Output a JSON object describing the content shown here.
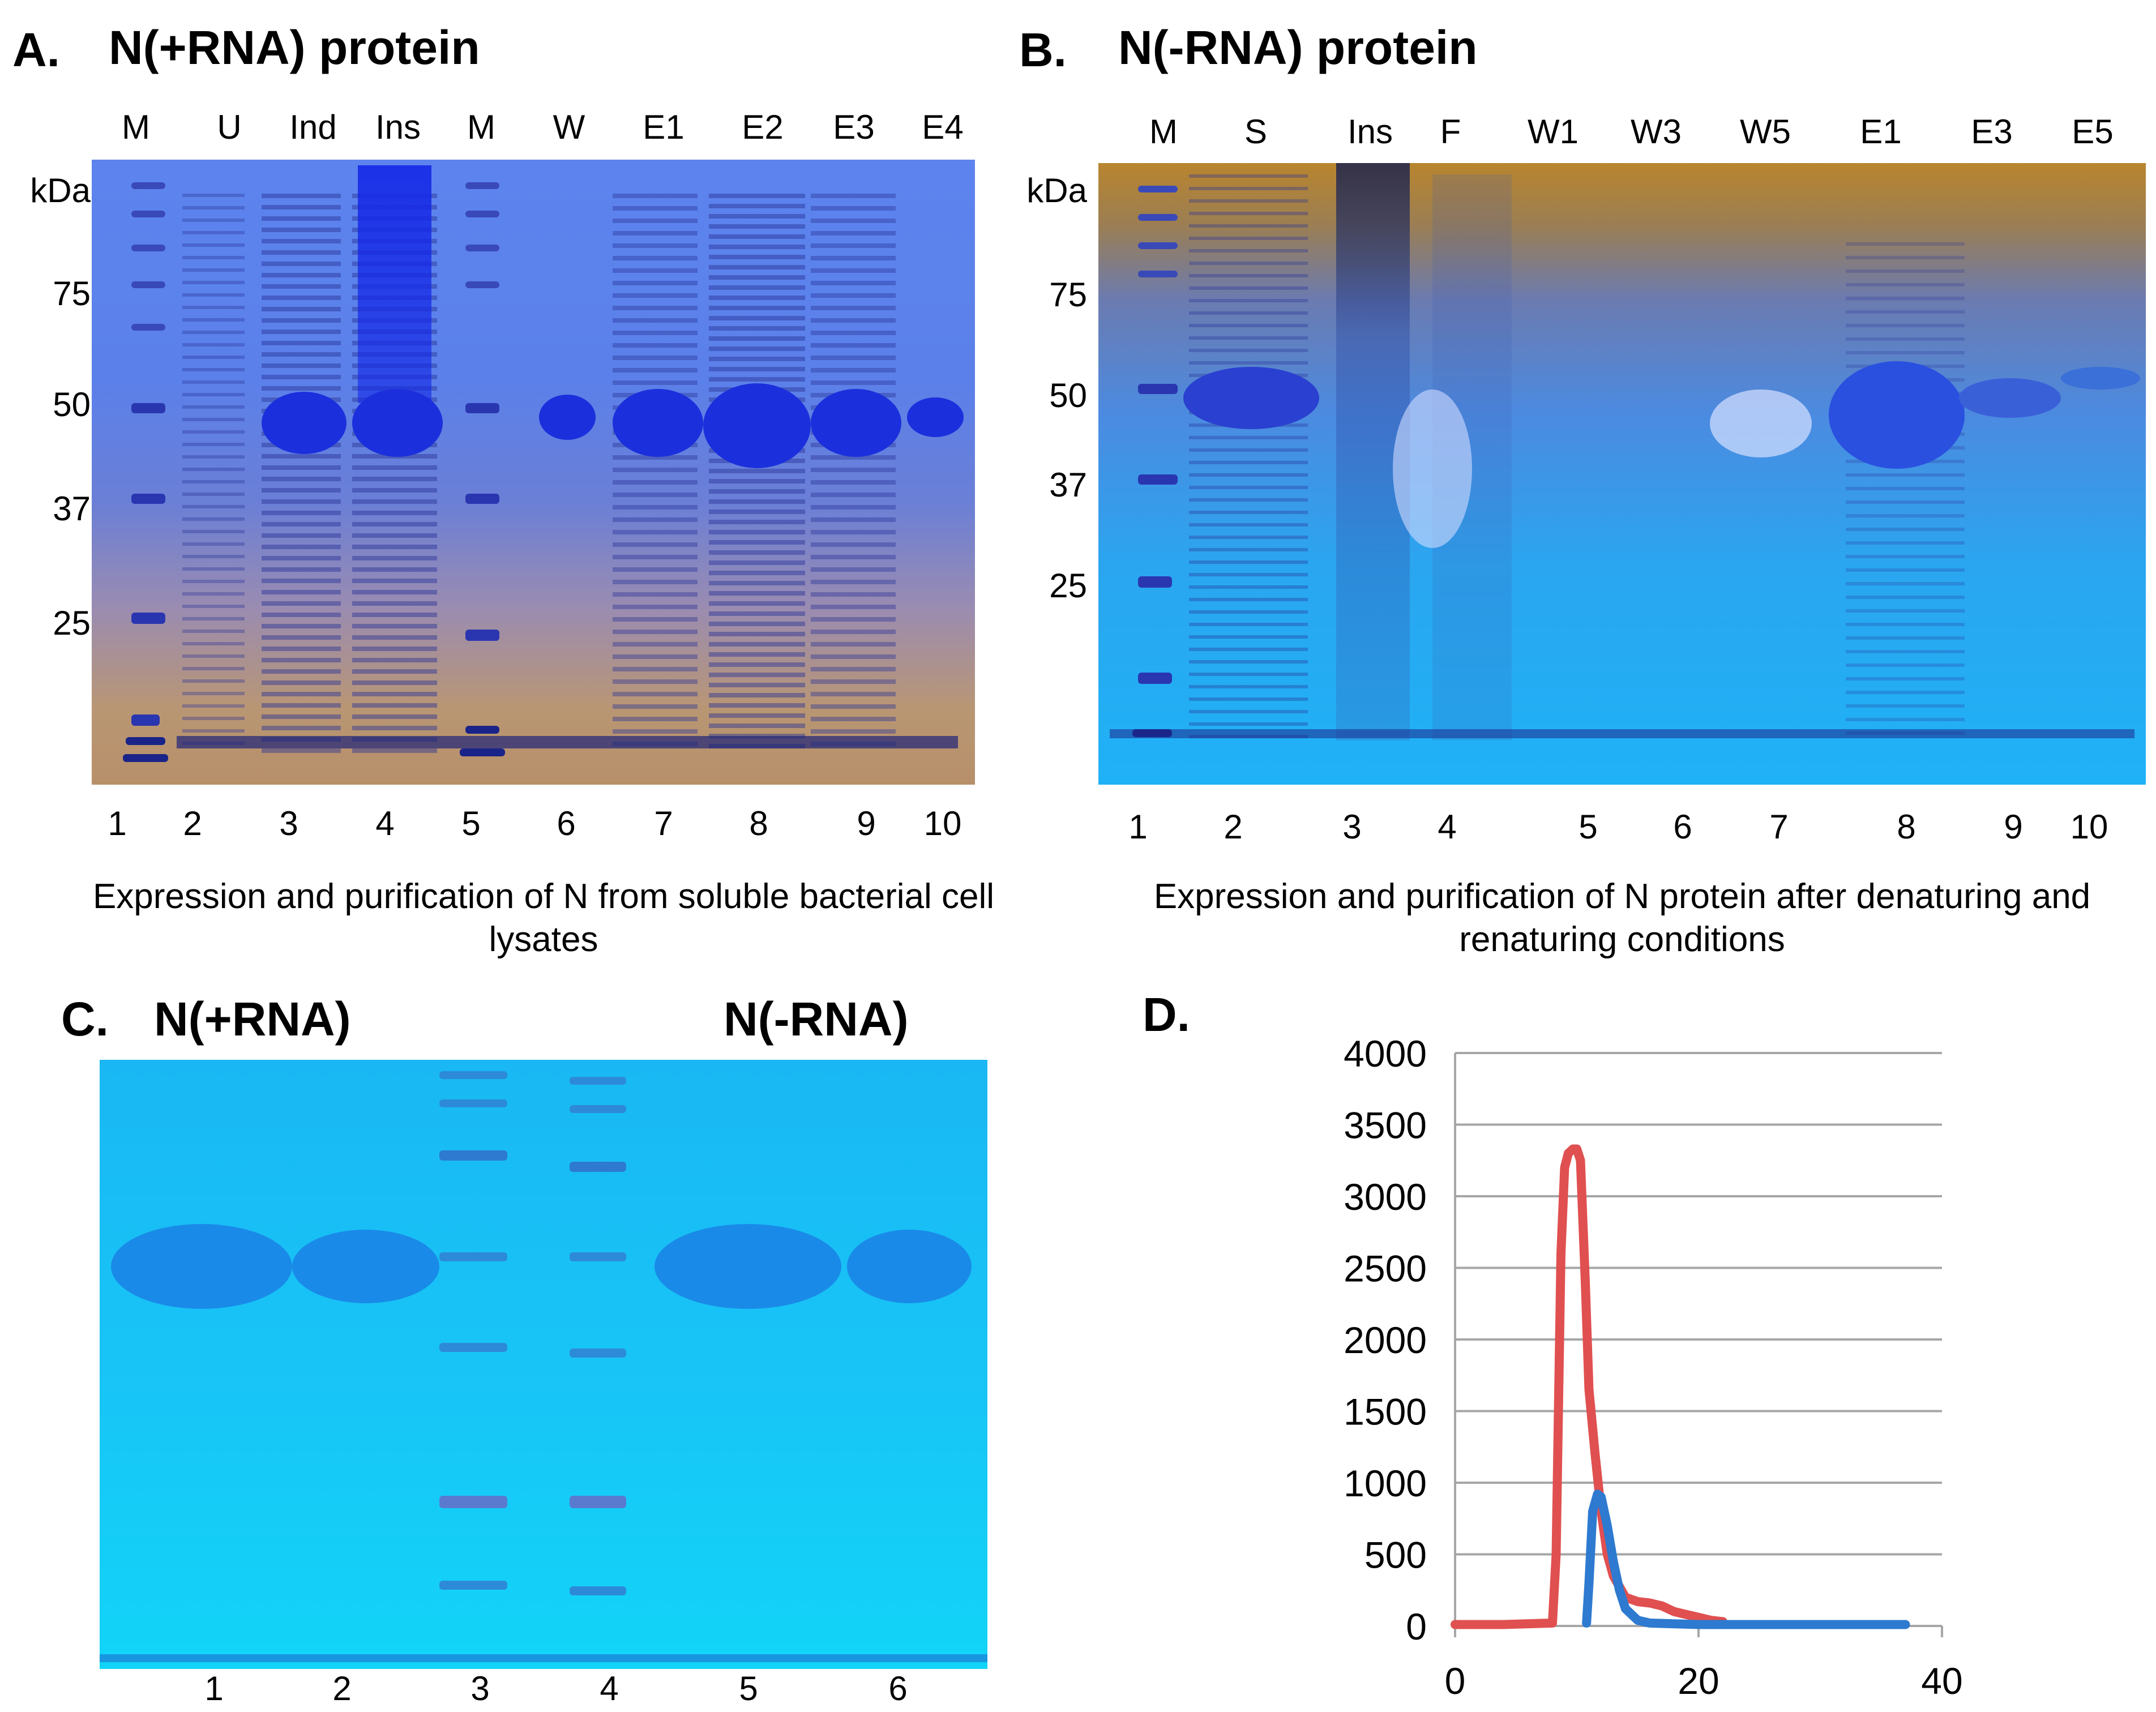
{
  "panelA": {
    "letter": "A.",
    "title": "N(+RNA) protein",
    "lanes_top": [
      "M",
      "U",
      "Ind",
      "Ins",
      "M",
      "W",
      "E1",
      "E2",
      "E3",
      "E4"
    ],
    "lanes_bottom": [
      "1",
      "2",
      "3",
      "4",
      "5",
      "6",
      "7",
      "8",
      "9",
      "10"
    ],
    "mw_unit": "kDa",
    "mw_markers": [
      "75",
      "50",
      "37",
      "25"
    ],
    "caption_line1": "Expression and purification of N from soluble bacterial cell",
    "caption_line2": "lysates"
  },
  "panelB": {
    "letter": "B.",
    "title": "N(-RNA) protein",
    "lanes_top": [
      "M",
      "S",
      "Ins",
      "F",
      "W1",
      "W3",
      "W5",
      "E1",
      "E3",
      "E5"
    ],
    "lanes_bottom": [
      "1",
      "2",
      "3",
      "4",
      "5",
      "6",
      "7",
      "8",
      "9",
      "10"
    ],
    "mw_unit": "kDa",
    "mw_markers": [
      "75",
      "50",
      "37",
      "25"
    ],
    "caption_line1": "Expression and purification of N protein after denaturing and",
    "caption_line2": "renaturing conditions"
  },
  "panelC": {
    "letter": "C.",
    "label_left": "N(+RNA)",
    "label_right": "N(-RNA)",
    "lanes_bottom": [
      "1",
      "2",
      "3",
      "4",
      "5",
      "6"
    ]
  },
  "panelD": {
    "letter": "D."
  },
  "colors": {
    "gel_blue": "#3a6cf0",
    "gel_cyan": "#19c8f5",
    "band_dark": "#1b2fd8",
    "series_red": "#e05050",
    "series_blue": "#2d7ad0",
    "grid": "#a6a6a6"
  },
  "chart_data": {
    "type": "line",
    "title": "",
    "xlabel": "",
    "ylabel": "",
    "xlim": [
      0,
      40
    ],
    "ylim": [
      0,
      4000
    ],
    "x_ticks": [
      "0",
      "20",
      "40"
    ],
    "y_ticks": [
      "0",
      "500",
      "1000",
      "1500",
      "2000",
      "2500",
      "3000",
      "3500",
      "4000"
    ],
    "series": [
      {
        "name": "red",
        "color": "#e05050",
        "x": [
          0,
          4,
          8,
          8.3,
          8.7,
          9.0,
          9.3,
          9.7,
          10.0,
          10.3,
          10.7,
          11.0,
          11.5,
          12.0,
          12.5,
          13.0,
          14.0,
          15.0,
          16.0,
          17.0,
          18.0,
          19.0,
          20.0,
          21.0,
          22.0
        ],
        "y": [
          10,
          10,
          20,
          500,
          2600,
          3200,
          3300,
          3330,
          3330,
          3250,
          2400,
          1650,
          1200,
          800,
          500,
          350,
          200,
          170,
          160,
          140,
          100,
          80,
          60,
          40,
          30
        ]
      },
      {
        "name": "blue",
        "color": "#2d7ad0",
        "x": [
          10.8,
          11.0,
          11.3,
          11.7,
          12.0,
          12.5,
          13.0,
          13.5,
          14.0,
          15.0,
          16.0,
          20.0,
          30.0,
          37.0
        ],
        "y": [
          20,
          300,
          800,
          920,
          900,
          700,
          450,
          250,
          120,
          40,
          20,
          10,
          10,
          10
        ]
      }
    ]
  }
}
